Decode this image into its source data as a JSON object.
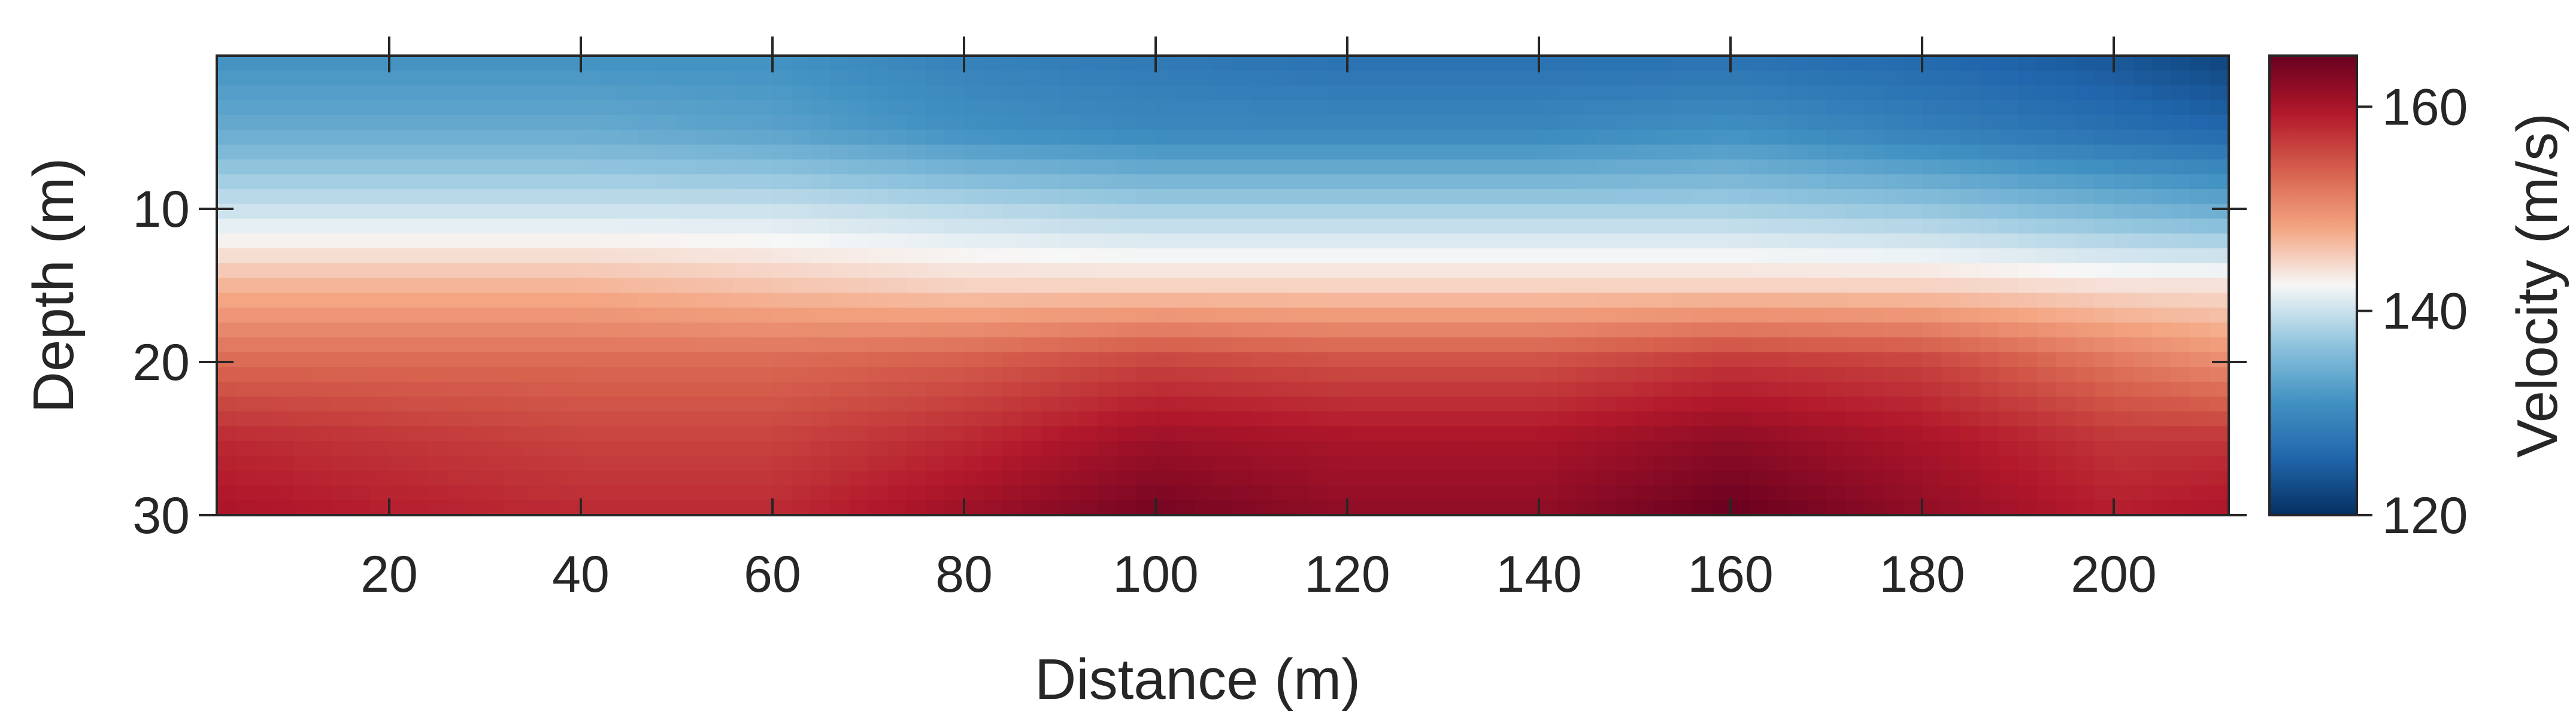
{
  "chart_data": {
    "type": "heatmap",
    "title": "",
    "xlabel": "Distance (m)",
    "ylabel": "Depth (m)",
    "xlim": [
      2,
      212
    ],
    "ylim": [
      30,
      0
    ],
    "x_ticks": [
      20,
      40,
      60,
      80,
      100,
      120,
      140,
      160,
      180,
      200
    ],
    "y_ticks": [
      10,
      20,
      30
    ],
    "colorbar": {
      "label": "Velocity (m/s)",
      "range": [
        120,
        165
      ],
      "ticks": [
        120,
        140,
        160
      ],
      "colormap": "blue-white-red",
      "colors": [
        "#053061",
        "#2166ac",
        "#4393c3",
        "#92c5de",
        "#f7f7f7",
        "#f4a582",
        "#d6604d",
        "#b2182b",
        "#67001f"
      ]
    },
    "grid": false,
    "depths": [
      0,
      5,
      10,
      15,
      20,
      25,
      30
    ],
    "distances": [
      2,
      20,
      40,
      60,
      80,
      100,
      120,
      140,
      160,
      180,
      200,
      212
    ],
    "velocity": [
      [
        131,
        131,
        131,
        131,
        129,
        128,
        127,
        127,
        127,
        126,
        124,
        122
      ],
      [
        134,
        134,
        134,
        133,
        131,
        130,
        130,
        130,
        131,
        129,
        127,
        126
      ],
      [
        140,
        140,
        140,
        140,
        139,
        138,
        138,
        138,
        138,
        137,
        135,
        134
      ],
      [
        147,
        147,
        147,
        146,
        145,
        145,
        145,
        145,
        145,
        145,
        144,
        144
      ],
      [
        153,
        153,
        153,
        153,
        154,
        156,
        155,
        155,
        157,
        156,
        152,
        150
      ],
      [
        158,
        157,
        156,
        156,
        158,
        161,
        160,
        160,
        162,
        160,
        157,
        157
      ],
      [
        160,
        159,
        158,
        158,
        161,
        164,
        162,
        162,
        165,
        162,
        159,
        160
      ]
    ]
  }
}
